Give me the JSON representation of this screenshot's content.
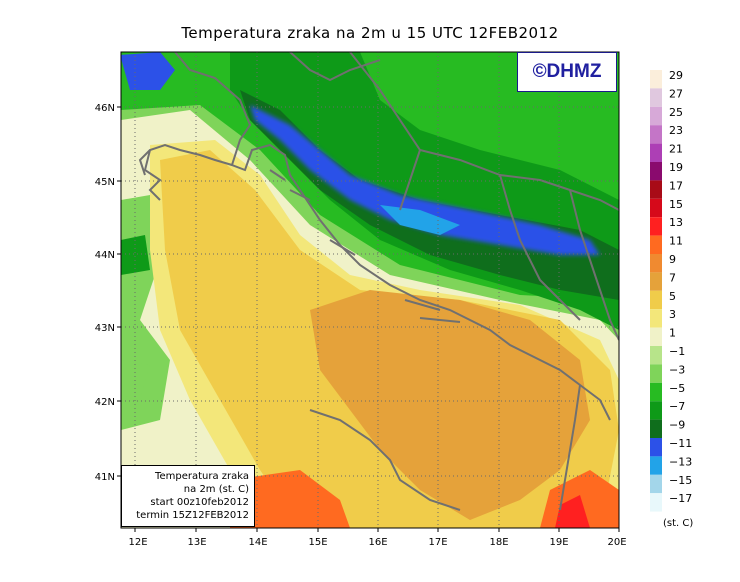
{
  "title": "Temperatura zraka na 2m u 15 UTC 12FEB2012",
  "logo": {
    "text": "©DHMZ"
  },
  "info_box": {
    "line1": "Temperatura zraka",
    "line2": "na 2m (st. C)",
    "line3": "start 00z10feb2012",
    "line4": "termin 15Z12FEB2012"
  },
  "legend": {
    "units": "(st. C)",
    "labels": [
      "29",
      "27",
      "25",
      "23",
      "21",
      "19",
      "17",
      "15",
      "13",
      "11",
      "9",
      "7",
      "5",
      "3",
      "1",
      "−1",
      "−3",
      "−5",
      "−7",
      "−9",
      "−11",
      "−13",
      "−15",
      "−17"
    ],
    "colors": [
      "#fbeedb",
      "#e0c8df",
      "#d7a9d8",
      "#c475c7",
      "#ad3fb5",
      "#8a0a6e",
      "#a80b17",
      "#d6091a",
      "#ff2020",
      "#ff6a20",
      "#f08a30",
      "#e5a23a",
      "#f0cc4a",
      "#f3e77a",
      "#f0f2c8",
      "#b7e48a",
      "#7fd45a",
      "#27bb22",
      "#0e9a18",
      "#0f6e1c",
      "#2c51e8",
      "#22a3e8",
      "#a3d6ea",
      "#e8f8fb"
    ]
  },
  "axes": {
    "x_ticks": [
      "12E",
      "13E",
      "14E",
      "15E",
      "16E",
      "17E",
      "18E",
      "19E",
      "20E"
    ],
    "y_ticks": [
      "41N",
      "42N",
      "43N",
      "44N",
      "45N",
      "46N"
    ]
  }
}
